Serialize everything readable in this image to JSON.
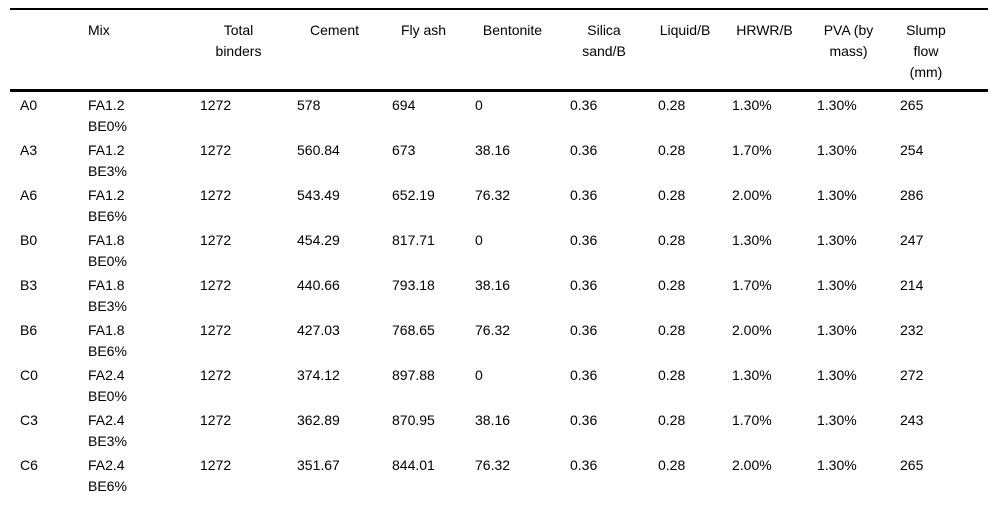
{
  "table": {
    "caption": "",
    "headers": [
      {
        "key": "row-label",
        "lines": [
          ""
        ]
      },
      {
        "key": "mix",
        "align": "left",
        "lines": [
          "Mix"
        ]
      },
      {
        "key": "total-binders",
        "lines": [
          "Total",
          "binders"
        ]
      },
      {
        "key": "cement",
        "lines": [
          "Cement"
        ]
      },
      {
        "key": "fly-ash",
        "lines": [
          "Fly ash"
        ]
      },
      {
        "key": "bentonite",
        "lines": [
          "Bentonite"
        ]
      },
      {
        "key": "silica-sand-b",
        "lines": [
          "Silica",
          "sand/B"
        ]
      },
      {
        "key": "liquid-b",
        "lines": [
          "Liquid/B"
        ]
      },
      {
        "key": "hrwr-b",
        "lines": [
          "HRWR/B"
        ]
      },
      {
        "key": "pva-by-mass",
        "lines": [
          "PVA (by",
          "mass)"
        ]
      },
      {
        "key": "slump-flow-mm",
        "lines": [
          "Slump",
          "flow",
          "(mm)"
        ]
      }
    ],
    "value_keys": [
      "total-binders",
      "cement",
      "fly-ash",
      "bentonite",
      "silica-sand-b",
      "liquid-b",
      "hrwr-b",
      "pva-by-mass",
      "slump-flow-mm"
    ],
    "rows": [
      {
        "id": "A0",
        "mix": [
          "FA1.2",
          "BE0%"
        ],
        "values": [
          "1272",
          "578",
          "694",
          "0",
          "0.36",
          "0.28",
          "1.30%",
          "1.30%",
          "265"
        ]
      },
      {
        "id": "A3",
        "mix": [
          "FA1.2",
          "BE3%"
        ],
        "values": [
          "1272",
          "560.84",
          "673",
          "38.16",
          "0.36",
          "0.28",
          "1.70%",
          "1.30%",
          "254"
        ]
      },
      {
        "id": "A6",
        "mix": [
          "FA1.2",
          "BE6%"
        ],
        "values": [
          "1272",
          "543.49",
          "652.19",
          "76.32",
          "0.36",
          "0.28",
          "2.00%",
          "1.30%",
          "286"
        ]
      },
      {
        "id": "B0",
        "mix": [
          "FA1.8",
          "BE0%"
        ],
        "values": [
          "1272",
          "454.29",
          "817.71",
          "0",
          "0.36",
          "0.28",
          "1.30%",
          "1.30%",
          "247"
        ]
      },
      {
        "id": "B3",
        "mix": [
          "FA1.8",
          "BE3%"
        ],
        "values": [
          "1272",
          "440.66",
          "793.18",
          "38.16",
          "0.36",
          "0.28",
          "1.70%",
          "1.30%",
          "214"
        ]
      },
      {
        "id": "B6",
        "mix": [
          "FA1.8",
          "BE6%"
        ],
        "values": [
          "1272",
          "427.03",
          "768.65",
          "76.32",
          "0.36",
          "0.28",
          "2.00%",
          "1.30%",
          "232"
        ]
      },
      {
        "id": "C0",
        "mix": [
          "FA2.4",
          "BE0%"
        ],
        "values": [
          "1272",
          "374.12",
          "897.88",
          "0",
          "0.36",
          "0.28",
          "1.30%",
          "1.30%",
          "272"
        ]
      },
      {
        "id": "C3",
        "mix": [
          "FA2.4",
          "BE3%"
        ],
        "values": [
          "1272",
          "362.89",
          "870.95",
          "38.16",
          "0.36",
          "0.28",
          "1.70%",
          "1.30%",
          "243"
        ]
      },
      {
        "id": "C6",
        "mix": [
          "FA2.4",
          "BE6%"
        ],
        "values": [
          "1272",
          "351.67",
          "844.01",
          "76.32",
          "0.36",
          "0.28",
          "2.00%",
          "1.30%",
          "265"
        ]
      }
    ]
  }
}
